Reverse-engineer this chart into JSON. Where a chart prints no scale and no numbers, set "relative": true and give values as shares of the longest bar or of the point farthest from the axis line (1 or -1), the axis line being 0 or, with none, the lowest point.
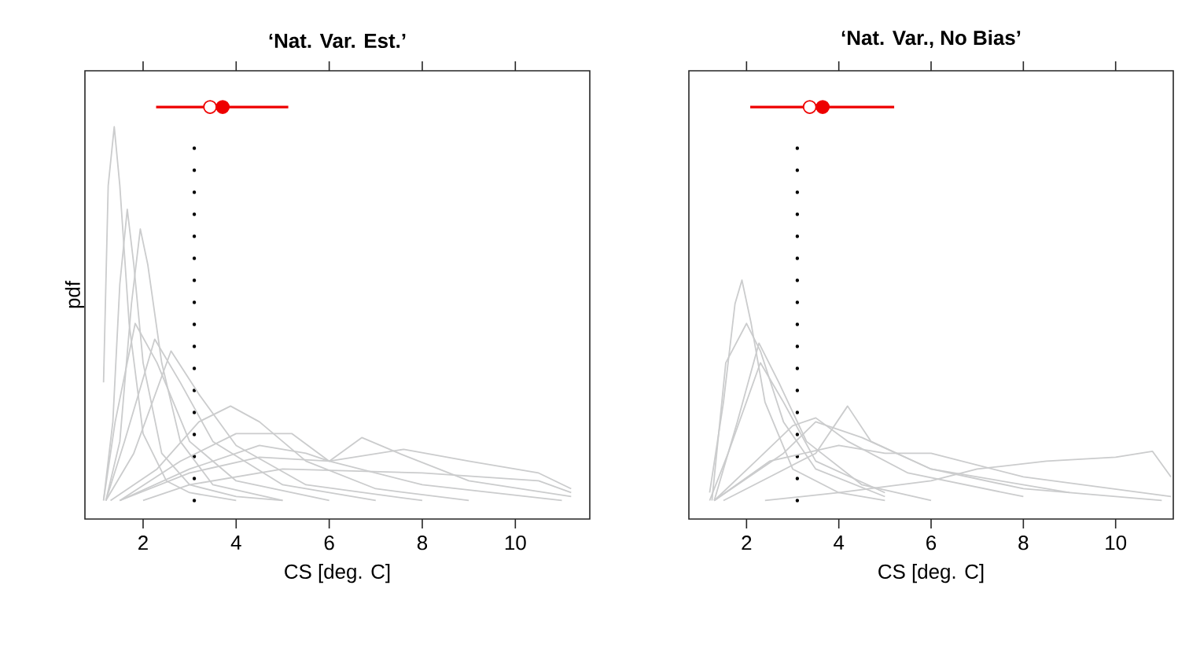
{
  "chart_data": [
    {
      "type": "line",
      "title": "‘Nat. Var. Est.’",
      "xlabel": "CS [deg. C]",
      "ylabel": "pdf",
      "relative": true,
      "xlim": [
        0.75,
        11.6
      ],
      "xticks": [
        2,
        4,
        6,
        8,
        10
      ],
      "tick_labels": "x",
      "grid": false,
      "ref_lines": [
        {
          "axis": "x",
          "value": 3.1,
          "color": "#000000",
          "line_style": "dotted"
        }
      ],
      "series": [
        {
          "color": "#cbcccd",
          "x": [
            1.15,
            1.25,
            1.38,
            1.5,
            1.7,
            2.0,
            2.5,
            3,
            4
          ],
          "values": [
            0.3,
            0.8,
            0.95,
            0.8,
            0.45,
            0.17,
            0.05,
            0.02,
            0.0
          ]
        },
        {
          "color": "#cbcccd",
          "x": [
            1.15,
            1.35,
            1.5,
            1.66,
            1.8,
            2.0,
            2.4,
            3,
            4,
            5
          ],
          "values": [
            0.0,
            0.2,
            0.55,
            0.74,
            0.6,
            0.35,
            0.12,
            0.04,
            0.01,
            0.0
          ]
        },
        {
          "color": "#cbcccd",
          "x": [
            1.2,
            1.5,
            1.75,
            1.94,
            2.1,
            2.4,
            2.8,
            3.5,
            5
          ],
          "values": [
            0.0,
            0.15,
            0.5,
            0.69,
            0.6,
            0.35,
            0.15,
            0.04,
            0.0
          ]
        },
        {
          "color": "#cbcccd",
          "x": [
            1.15,
            1.4,
            1.83,
            2.3,
            3,
            4,
            6
          ],
          "values": [
            0.0,
            0.2,
            0.45,
            0.35,
            0.15,
            0.05,
            0.0
          ]
        },
        {
          "color": "#cbcccd",
          "x": [
            1.2,
            1.6,
            2.25,
            2.8,
            3.5,
            5,
            7
          ],
          "values": [
            0.0,
            0.15,
            0.41,
            0.3,
            0.15,
            0.04,
            0.0
          ]
        },
        {
          "color": "#cbcccd",
          "x": [
            1.2,
            1.8,
            2.6,
            3.2,
            4,
            5.5,
            8
          ],
          "values": [
            0.0,
            0.12,
            0.38,
            0.27,
            0.14,
            0.04,
            0.0
          ]
        },
        {
          "color": "#cbcccd",
          "x": [
            1.3,
            2.3,
            3.2,
            3.88,
            4.5,
            5.5,
            7,
            9
          ],
          "values": [
            0.0,
            0.08,
            0.2,
            0.24,
            0.2,
            0.1,
            0.03,
            0.0
          ]
        },
        {
          "color": "#cbcccd",
          "x": [
            1.5,
            3,
            4.5,
            5.5,
            6.0,
            6.7,
            7.5,
            9,
            11.2
          ],
          "values": [
            0.0,
            0.08,
            0.14,
            0.12,
            0.1,
            0.16,
            0.12,
            0.05,
            0.01
          ]
        },
        {
          "color": "#cbcccd",
          "x": [
            1.5,
            3,
            4.5,
            6,
            7.6,
            9,
            10.5,
            11.2
          ],
          "values": [
            0.0,
            0.07,
            0.11,
            0.1,
            0.13,
            0.1,
            0.07,
            0.03
          ]
        },
        {
          "color": "#cbcccd",
          "x": [
            2,
            3,
            5,
            8,
            10.5,
            11.2
          ],
          "values": [
            0.0,
            0.04,
            0.08,
            0.07,
            0.05,
            0.02
          ]
        },
        {
          "color": "#cbcccd",
          "x": [
            1.5,
            2.8,
            4,
            5.2,
            6,
            8,
            11
          ],
          "values": [
            0.0,
            0.1,
            0.17,
            0.17,
            0.1,
            0.04,
            0.0
          ]
        },
        {
          "type": "scatter",
          "color": "#ee0000",
          "marker": "circle",
          "x": [
            3.44
          ],
          "values": [
            1
          ]
        },
        {
          "type": "scatter",
          "color": "#ee0000",
          "marker": "circle",
          "x": [
            3.71
          ],
          "values": [
            1
          ],
          "xerrors": [
            [
              2.28,
              5.12
            ]
          ]
        }
      ]
    },
    {
      "type": "line",
      "title": "‘Nat. Var., No Bias’",
      "xlabel": "CS [deg. C]",
      "relative": true,
      "xlim": [
        0.75,
        11.25
      ],
      "xticks": [
        2,
        4,
        6,
        8,
        10
      ],
      "tick_labels": "x",
      "grid": false,
      "ref_lines": [
        {
          "axis": "x",
          "value": 3.1,
          "color": "#000000",
          "line_style": "dotted"
        }
      ],
      "series": [
        {
          "color": "#cbcccd",
          "x": [
            1.2,
            1.5,
            1.75,
            1.9,
            2.1,
            2.4,
            3,
            4,
            5
          ],
          "values": [
            0.02,
            0.25,
            0.5,
            0.56,
            0.45,
            0.25,
            0.08,
            0.02,
            0.0
          ]
        },
        {
          "color": "#cbcccd",
          "x": [
            1.25,
            1.55,
            2.0,
            2.3,
            2.8,
            3.5,
            5
          ],
          "values": [
            0.0,
            0.35,
            0.45,
            0.38,
            0.2,
            0.08,
            0.01
          ]
        },
        {
          "color": "#cbcccd",
          "x": [
            1.3,
            1.8,
            2.27,
            2.7,
            3.3,
            4.5,
            6
          ],
          "values": [
            0.0,
            0.2,
            0.4,
            0.3,
            0.15,
            0.04,
            0.0
          ]
        },
        {
          "color": "#cbcccd",
          "x": [
            1.3,
            2.2,
            3.0,
            3.5,
            4.2,
            5.5,
            8
          ],
          "values": [
            0.0,
            0.1,
            0.19,
            0.21,
            0.15,
            0.07,
            0.01
          ]
        },
        {
          "color": "#cbcccd",
          "x": [
            1.5,
            2.5,
            3.5,
            4.19,
            4.7,
            6,
            8,
            11
          ],
          "values": [
            0.0,
            0.06,
            0.12,
            0.24,
            0.15,
            0.08,
            0.03,
            0.0
          ]
        },
        {
          "color": "#cbcccd",
          "x": [
            2.4,
            4,
            6,
            7,
            8.5,
            10,
            10.8,
            11.2
          ],
          "values": [
            0.0,
            0.02,
            0.05,
            0.08,
            0.1,
            0.11,
            0.125,
            0.06
          ]
        },
        {
          "color": "#cbcccd",
          "x": [
            1.3,
            2.5,
            4,
            5,
            6,
            8,
            11.2
          ],
          "values": [
            0.0,
            0.1,
            0.14,
            0.12,
            0.12,
            0.06,
            0.01
          ]
        },
        {
          "color": "#cbcccd",
          "x": [
            1.3,
            2.8,
            3.5,
            4.5,
            6,
            9
          ],
          "values": [
            0.0,
            0.12,
            0.2,
            0.16,
            0.08,
            0.02
          ]
        },
        {
          "color": "#cbcccd",
          "x": [
            1.2,
            1.6,
            2.3,
            2.8,
            3.5,
            5
          ],
          "values": [
            0.0,
            0.12,
            0.35,
            0.25,
            0.1,
            0.02
          ]
        },
        {
          "type": "scatter",
          "color": "#ee0000",
          "marker": "circle",
          "x": [
            3.37
          ],
          "values": [
            1
          ]
        },
        {
          "type": "scatter",
          "color": "#ee0000",
          "marker": "circle",
          "x": [
            3.65
          ],
          "values": [
            1
          ],
          "xerrors": [
            [
              2.08,
              5.2
            ]
          ]
        }
      ]
    }
  ]
}
